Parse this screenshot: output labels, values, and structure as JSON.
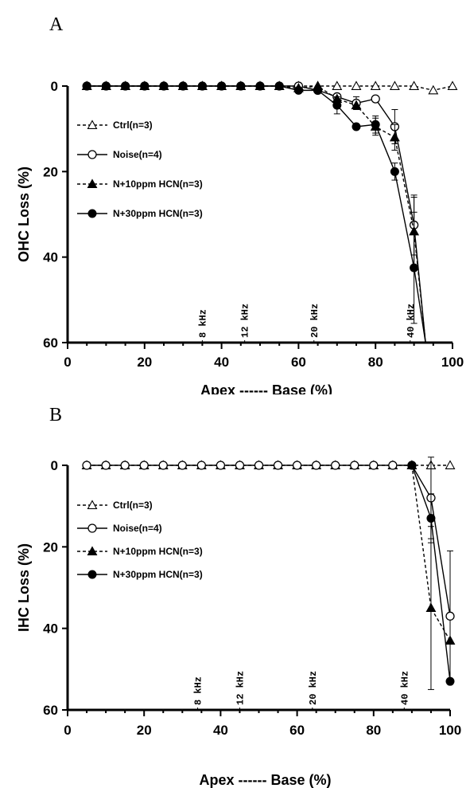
{
  "chart_data": [
    {
      "panel_letter": "A",
      "type": "line",
      "ylabel": "OHC Loss (%)",
      "xlabel": "Apex ------ Base (%)",
      "xlim": [
        0,
        100
      ],
      "ylim": [
        0,
        60
      ],
      "y_inverted": true,
      "x_ticks": [
        0,
        20,
        40,
        60,
        80,
        100
      ],
      "y_ticks": [
        0,
        20,
        40,
        60
      ],
      "freq_markers": [
        {
          "x": 35,
          "label": "8 kHz"
        },
        {
          "x": 46,
          "label": "12 kHz"
        },
        {
          "x": 64,
          "label": "20 kHz"
        },
        {
          "x": 89,
          "label": "40 kHz"
        }
      ],
      "series": [
        {
          "name": "Ctrl(n=3)",
          "marker": "triangle-open",
          "line": "dashed",
          "x": [
            5,
            10,
            15,
            20,
            25,
            30,
            35,
            40,
            45,
            50,
            55,
            60,
            65,
            70,
            75,
            80,
            85,
            90,
            95,
            100
          ],
          "y": [
            0,
            0,
            0,
            0,
            0,
            0,
            0,
            0,
            0,
            0,
            0,
            0,
            0,
            0,
            0,
            0,
            0,
            0,
            1,
            0
          ]
        },
        {
          "name": "Noise(n=4)",
          "marker": "circle-open",
          "line": "solid",
          "x": [
            5,
            10,
            15,
            20,
            25,
            30,
            35,
            40,
            45,
            50,
            55,
            60,
            65,
            70,
            75,
            80,
            85,
            90,
            93
          ],
          "y": [
            0,
            0,
            0,
            0,
            0,
            0,
            0,
            0,
            0,
            0,
            0,
            0,
            1,
            2.5,
            4,
            3,
            9.5,
            32.5,
            60
          ],
          "err": [
            0,
            0,
            0,
            0,
            0,
            0,
            0,
            0,
            0,
            0,
            0,
            0,
            0,
            0,
            1.5,
            0,
            4,
            7,
            0
          ]
        },
        {
          "name": "N+10ppm HCN(n=3)",
          "marker": "triangle-filled",
          "line": "dashed",
          "x": [
            5,
            10,
            15,
            20,
            25,
            30,
            35,
            40,
            45,
            50,
            55,
            60,
            65,
            70,
            75,
            80,
            85,
            90,
            93
          ],
          "y": [
            0,
            0,
            0,
            0,
            0,
            0,
            0,
            0,
            0,
            0,
            0,
            0.5,
            0,
            3,
            4.5,
            9.5,
            12,
            34,
            60
          ],
          "err": [
            0,
            0,
            0,
            0,
            0,
            0,
            0,
            0,
            0,
            0,
            0,
            0,
            0,
            0,
            0,
            2,
            3,
            8,
            0
          ]
        },
        {
          "name": "N+30ppm HCN(n=3)",
          "marker": "circle-filled",
          "line": "solid",
          "x": [
            5,
            10,
            15,
            20,
            25,
            30,
            35,
            40,
            45,
            50,
            55,
            60,
            65,
            70,
            75,
            80,
            85,
            90,
            93
          ],
          "y": [
            0,
            0,
            0,
            0,
            0,
            0,
            0,
            0,
            0,
            0,
            0,
            1,
            1,
            4.5,
            9.5,
            9,
            20,
            42.5,
            60
          ],
          "err": [
            0,
            0,
            0,
            0,
            0,
            0,
            0,
            0,
            0,
            0,
            0,
            0,
            0,
            2,
            0,
            2,
            2,
            13,
            0
          ]
        }
      ]
    },
    {
      "panel_letter": "B",
      "type": "line",
      "ylabel": "IHC Loss (%)",
      "xlabel": "Apex ------ Base (%)",
      "xlim": [
        0,
        100
      ],
      "ylim": [
        0,
        60
      ],
      "y_inverted": true,
      "x_ticks": [
        0,
        20,
        40,
        60,
        80,
        100
      ],
      "y_ticks": [
        0,
        20,
        40,
        60
      ],
      "freq_markers": [
        {
          "x": 34,
          "label": "8 kHz"
        },
        {
          "x": 45,
          "label": "12 kHz"
        },
        {
          "x": 64,
          "label": "20 kHz"
        },
        {
          "x": 88,
          "label": "40 kHz"
        }
      ],
      "series": [
        {
          "name": "Ctrl(n=3)",
          "marker": "triangle-open",
          "line": "dashed",
          "x": [
            5,
            10,
            15,
            20,
            25,
            30,
            35,
            40,
            45,
            50,
            55,
            60,
            65,
            70,
            75,
            80,
            85,
            90,
            95,
            100
          ],
          "y": [
            0,
            0,
            0,
            0,
            0,
            0,
            0,
            0,
            0,
            0,
            0,
            0,
            0,
            0,
            0,
            0,
            0,
            0,
            0,
            0
          ]
        },
        {
          "name": "Noise(n=4)",
          "marker": "circle-open",
          "line": "solid",
          "x": [
            5,
            10,
            15,
            20,
            25,
            30,
            35,
            40,
            45,
            50,
            55,
            60,
            65,
            70,
            75,
            80,
            85,
            90,
            95,
            100
          ],
          "y": [
            0,
            0,
            0,
            0,
            0,
            0,
            0,
            0,
            0,
            0,
            0,
            0,
            0,
            0,
            0,
            0,
            0,
            0,
            8,
            37
          ],
          "err": [
            0,
            0,
            0,
            0,
            0,
            0,
            0,
            0,
            0,
            0,
            0,
            0,
            0,
            0,
            0,
            0,
            0,
            0,
            10,
            16
          ]
        },
        {
          "name": "N+10ppm HCN(n=3)",
          "marker": "triangle-filled",
          "line": "dashed",
          "x": [
            90,
            95,
            100
          ],
          "y": [
            0,
            35,
            43
          ],
          "err": [
            0,
            20,
            0
          ]
        },
        {
          "name": "N+30ppm HCN(n=3)",
          "marker": "circle-filled",
          "line": "solid",
          "x": [
            90,
            95,
            100
          ],
          "y": [
            0,
            13,
            53
          ],
          "err": [
            0,
            6,
            0
          ]
        }
      ]
    }
  ]
}
